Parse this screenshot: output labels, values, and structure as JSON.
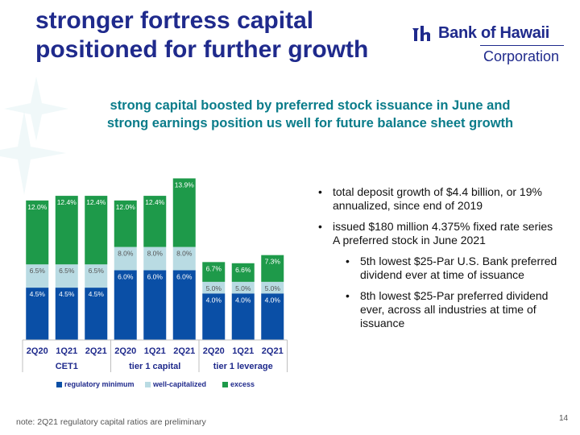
{
  "slide": {
    "title_line1": "stronger fortress capital",
    "title_line2": "positioned for further growth",
    "subtitle_line1": "strong capital boosted by preferred stock issuance in June and",
    "subtitle_line2": "strong earnings position us well for future balance sheet growth",
    "logo_name": "Bank of Hawaii",
    "logo_corp": "Corporation",
    "footnote": "note: 2Q21 regulatory capital ratios are preliminary",
    "page_number": "14",
    "bullets": [
      {
        "text": "total deposit growth of $4.4 billion, or 19% annualized, since end of 2019",
        "level": 1
      },
      {
        "text": "issued $180 million 4.375% fixed rate series A preferred stock in June 2021",
        "level": 1
      },
      {
        "text": "5th lowest $25-Par U.S. Bank preferred dividend ever at time of issuance",
        "level": 2
      },
      {
        "text": "8th lowest $25-Par preferred dividend ever, across all industries at time of issuance",
        "level": 2
      }
    ],
    "bullet_glyph": "•"
  },
  "chart_data": {
    "type": "bar",
    "stacked": true,
    "categories": [
      "2Q20",
      "1Q21",
      "2Q21",
      "2Q20",
      "1Q21",
      "2Q21",
      "2Q20",
      "1Q21",
      "2Q21"
    ],
    "groups": [
      {
        "label": "CET1",
        "count": 3
      },
      {
        "label": "tier 1 capital",
        "count": 3
      },
      {
        "label": "tier 1 leverage",
        "count": 3
      }
    ],
    "series": [
      {
        "name": "regulatory minimum",
        "color": "#0a4fa6",
        "values": [
          4.5,
          4.5,
          4.5,
          6.0,
          6.0,
          6.0,
          4.0,
          4.0,
          4.0
        ],
        "labels": [
          "4.5%",
          "4.5%",
          "4.5%",
          "6.0%",
          "6.0%",
          "6.0%",
          "4.0%",
          "4.0%",
          "4.0%"
        ]
      },
      {
        "name": "well-capitalized",
        "color": "#b9dbe3",
        "values": [
          2.0,
          2.0,
          2.0,
          2.0,
          2.0,
          2.0,
          1.0,
          1.0,
          1.0
        ],
        "labels": [
          "6.5%",
          "6.5%",
          "6.5%",
          "8.0%",
          "8.0%",
          "8.0%",
          "5.0%",
          "5.0%",
          "5.0%"
        ]
      },
      {
        "name": "excess",
        "color": "#1e9a4a",
        "values": [
          5.5,
          5.9,
          5.9,
          4.0,
          4.4,
          5.9,
          1.7,
          1.6,
          2.3
        ],
        "labels": [
          "12.0%",
          "12.4%",
          "12.4%",
          "12.0%",
          "12.4%",
          "13.9%",
          "6.7%",
          "6.6%",
          "7.3%"
        ]
      }
    ],
    "ylim": [
      0,
      14
    ],
    "legend_position": "bottom"
  }
}
